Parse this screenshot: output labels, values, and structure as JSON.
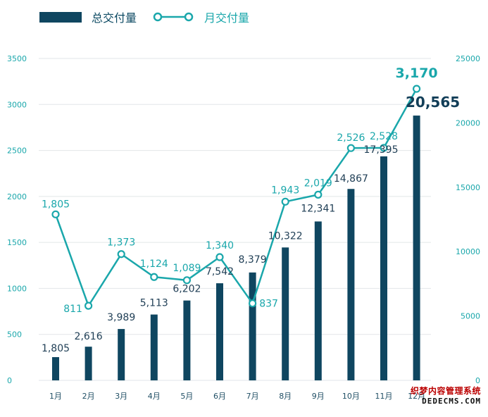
{
  "chart_data": {
    "type": "bar+line",
    "categories": [
      "1月",
      "2月",
      "3月",
      "4月",
      "5月",
      "6月",
      "7月",
      "8月",
      "9月",
      "10月",
      "11月",
      "12月"
    ],
    "series": [
      {
        "name": "总交付量",
        "type": "bar",
        "axis": "right",
        "color": "#0f4660",
        "values": [
          1805,
          2616,
          3989,
          5113,
          6202,
          7542,
          8379,
          10322,
          12341,
          14867,
          17395,
          20565
        ]
      },
      {
        "name": "月交付量",
        "type": "line",
        "axis": "left",
        "color": "#1aa7ab",
        "values": [
          1805,
          811,
          1373,
          1124,
          1089,
          1340,
          837,
          1943,
          2019,
          2526,
          2528,
          3170
        ]
      }
    ],
    "y_left": {
      "ticks": [
        "3500",
        "3000",
        "2500",
        "2000",
        "1500",
        "1000",
        "500",
        "0"
      ],
      "lim": [
        0,
        3500
      ]
    },
    "y_right": {
      "ticks": [
        "25000",
        "20000",
        "15000",
        "10000",
        "5000",
        "0"
      ],
      "lim": [
        0,
        25000
      ]
    },
    "grid": true,
    "legend_position": "top-left"
  },
  "watermark": {
    "line1": "织梦内容管理系统",
    "line2": "DEDECMS.COM"
  }
}
